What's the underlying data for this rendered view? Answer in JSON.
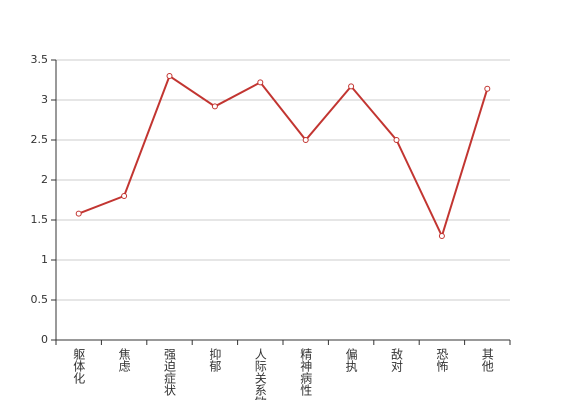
{
  "chart_data": {
    "type": "line",
    "categories": [
      "躯体化",
      "焦虑",
      "强迫症状",
      "抑郁",
      "人际关系敏感",
      "精神病性",
      "偏执",
      "敌对",
      "恐怖",
      "其他"
    ],
    "values": [
      1.58,
      1.8,
      3.3,
      2.92,
      3.22,
      2.5,
      3.17,
      2.5,
      1.3,
      3.14
    ],
    "color": "#c23531",
    "ylim": [
      0,
      3.5
    ],
    "yticks": [
      0,
      0.5,
      1,
      1.5,
      2,
      2.5,
      3,
      3.5
    ],
    "grid": true
  }
}
